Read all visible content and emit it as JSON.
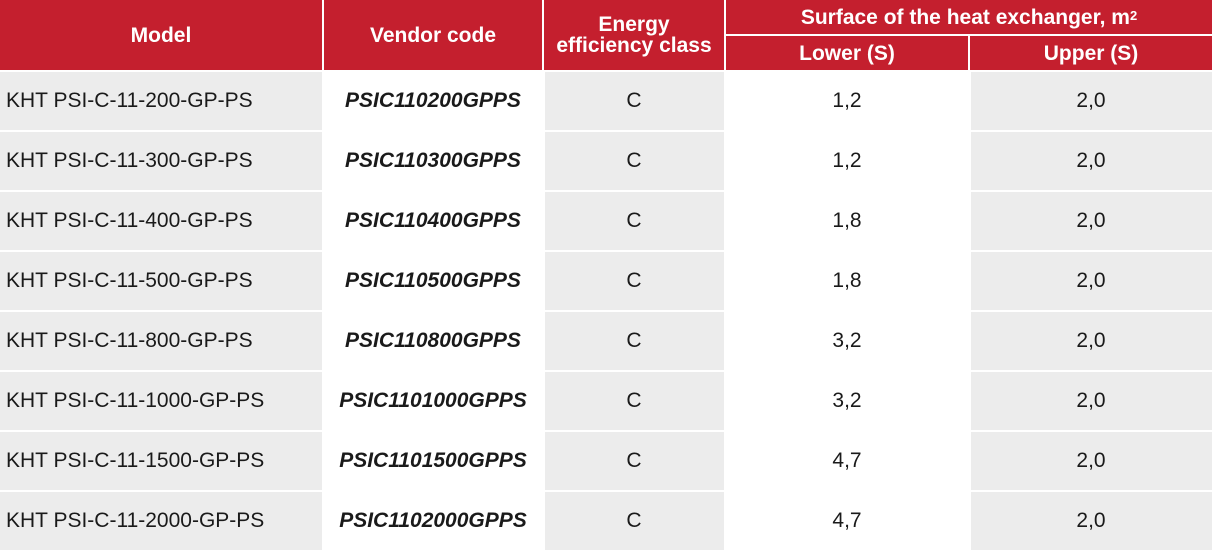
{
  "table": {
    "headers": {
      "model": "Model",
      "vendor_code": "Vendor code",
      "energy_line1": "Energy",
      "energy_line2": "efficiency class",
      "surface_group": "Surface of the heat exchanger, m",
      "surface_unit_sup": "2",
      "lower": "Lower (S)",
      "upper": "Upper (S)"
    },
    "rows": [
      {
        "model": "KHT PSI-C-11-200-GP-PS",
        "code": "PSIC110200GPPS",
        "energy": "C",
        "lower": "1,2",
        "upper": "2,0"
      },
      {
        "model": "KHT PSI-C-11-300-GP-PS",
        "code": "PSIC110300GPPS",
        "energy": "C",
        "lower": "1,2",
        "upper": "2,0"
      },
      {
        "model": "KHT PSI-C-11-400-GP-PS",
        "code": "PSIC110400GPPS",
        "energy": "C",
        "lower": "1,8",
        "upper": "2,0"
      },
      {
        "model": "KHT PSI-C-11-500-GP-PS",
        "code": "PSIC110500GPPS",
        "energy": "C",
        "lower": "1,8",
        "upper": "2,0"
      },
      {
        "model": "KHT PSI-C-11-800-GP-PS",
        "code": "PSIC110800GPPS",
        "energy": "C",
        "lower": "3,2",
        "upper": "2,0"
      },
      {
        "model": "KHT PSI-C-11-1000-GP-PS",
        "code": "PSIC1101000GPPS",
        "energy": "C",
        "lower": "3,2",
        "upper": "2,0"
      },
      {
        "model": "KHT PSI-C-11-1500-GP-PS",
        "code": "PSIC1101500GPPS",
        "energy": "C",
        "lower": "4,7",
        "upper": "2,0"
      },
      {
        "model": "KHT PSI-C-11-2000-GP-PS",
        "code": "PSIC1102000GPPS",
        "energy": "C",
        "lower": "4,7",
        "upper": "2,0"
      }
    ]
  },
  "colors": {
    "header_red": "#c41f2e",
    "stripe_gray": "#ececec",
    "text": "#1a1a1a"
  }
}
